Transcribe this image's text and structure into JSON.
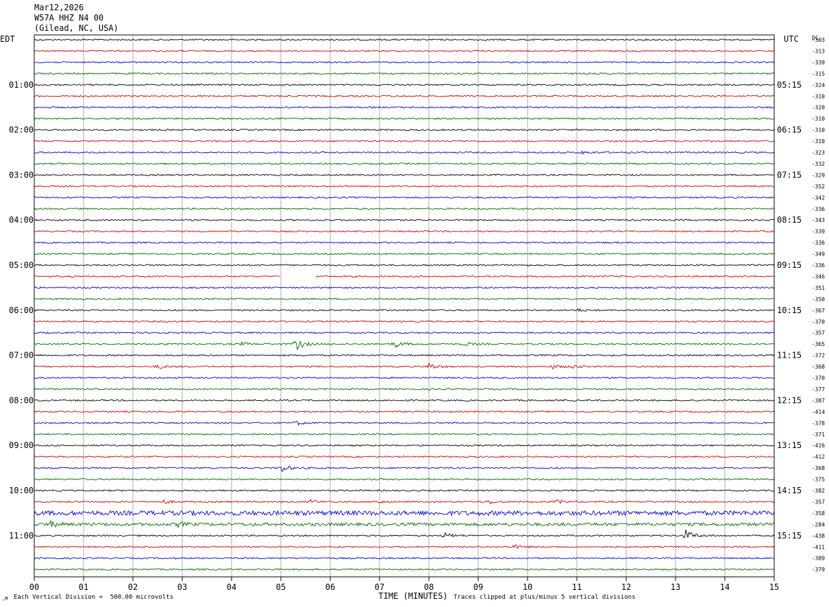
{
  "header": {
    "date": "Mar12,2026",
    "station": "W57A HHZ N4 00",
    "location": "(Gilead, NC, USA)"
  },
  "left_tz": "EDT",
  "right_tz": "UTC",
  "dc_label": "DC",
  "footer": {
    "division_note": "Each Vertical Division =  500.00 microvolts",
    "clip_note": "Traces clipped at plus/minus 5 vertical divisions",
    "corner_mark": ",M"
  },
  "colors": {
    "trace_cycle": [
      "#000000",
      "#cc0000",
      "#0000cc",
      "#006600"
    ],
    "grid": "#9a9a9a"
  },
  "chart_data": {
    "type": "line",
    "title": "",
    "xlabel": "TIME (MINUTES)",
    "ylabel": "",
    "xlim": [
      0,
      15
    ],
    "x_ticks": [
      "00",
      "01",
      "02",
      "03",
      "04",
      "05",
      "06",
      "07",
      "08",
      "09",
      "10",
      "11",
      "12",
      "13",
      "14",
      "15"
    ],
    "grid": true,
    "trace_count": 48,
    "trace_minutes_each": 15,
    "left_hour_labels": [
      "01:00",
      "02:00",
      "03:00",
      "04:00",
      "05:00",
      "06:00",
      "07:00",
      "08:00",
      "09:00",
      "10:00",
      "11:00"
    ],
    "right_hour_labels": [
      "05:15",
      "06:15",
      "07:15",
      "08:15",
      "09:15",
      "10:15",
      "11:15",
      "12:15",
      "13:15",
      "14:15",
      "15:15"
    ],
    "dc_offsets": [
      -303,
      -313,
      -339,
      -315,
      -324,
      -310,
      -320,
      -310,
      -310,
      -310,
      -323,
      -332,
      -329,
      -352,
      -342,
      -336,
      -343,
      -339,
      -336,
      -349,
      -336,
      -346,
      -351,
      -350,
      -367,
      -370,
      -357,
      -365,
      -372,
      -368,
      -370,
      -377,
      -387,
      -414,
      -378,
      -371,
      -416,
      -412,
      -368,
      -375,
      -382,
      -357,
      -358,
      -284,
      -438,
      -411,
      -389,
      -379
    ],
    "data_gaps": [
      {
        "trace": 21,
        "start_min": 5.0,
        "end_min": 5.7
      }
    ],
    "events": [
      {
        "trace": 10,
        "minute": 11.1,
        "amp": 2
      },
      {
        "trace": 24,
        "minute": 11.0,
        "amp": 2
      },
      {
        "trace": 27,
        "minute": 5.3,
        "amp": 9
      },
      {
        "trace": 27,
        "minute": 7.3,
        "amp": 5
      },
      {
        "trace": 27,
        "minute": 8.7,
        "amp": 3
      },
      {
        "trace": 27,
        "minute": 4.2,
        "amp": 2
      },
      {
        "trace": 29,
        "minute": 2.5,
        "amp": 3
      },
      {
        "trace": 29,
        "minute": 8.0,
        "amp": 5
      },
      {
        "trace": 29,
        "minute": 10.5,
        "amp": 3
      },
      {
        "trace": 29,
        "minute": 10.9,
        "amp": 3
      },
      {
        "trace": 34,
        "minute": 5.3,
        "amp": 3
      },
      {
        "trace": 38,
        "minute": 5.0,
        "amp": 6
      },
      {
        "trace": 41,
        "minute": 2.6,
        "amp": 3
      },
      {
        "trace": 41,
        "minute": 5.6,
        "amp": 3
      },
      {
        "trace": 41,
        "minute": 6.9,
        "amp": 3
      },
      {
        "trace": 41,
        "minute": 9.2,
        "amp": 3
      },
      {
        "trace": 41,
        "minute": 10.6,
        "amp": 3
      },
      {
        "trace": 43,
        "minute": 0.3,
        "amp": 4
      },
      {
        "trace": 43,
        "minute": 2.9,
        "amp": 3
      },
      {
        "trace": 44,
        "minute": 8.3,
        "amp": 4
      },
      {
        "trace": 44,
        "minute": 13.2,
        "amp": 8
      },
      {
        "trace": 45,
        "minute": 9.7,
        "amp": 3
      }
    ],
    "noisy_traces": [
      {
        "trace": 42,
        "amp": 3
      },
      {
        "trace": 43,
        "amp": 2
      }
    ]
  }
}
